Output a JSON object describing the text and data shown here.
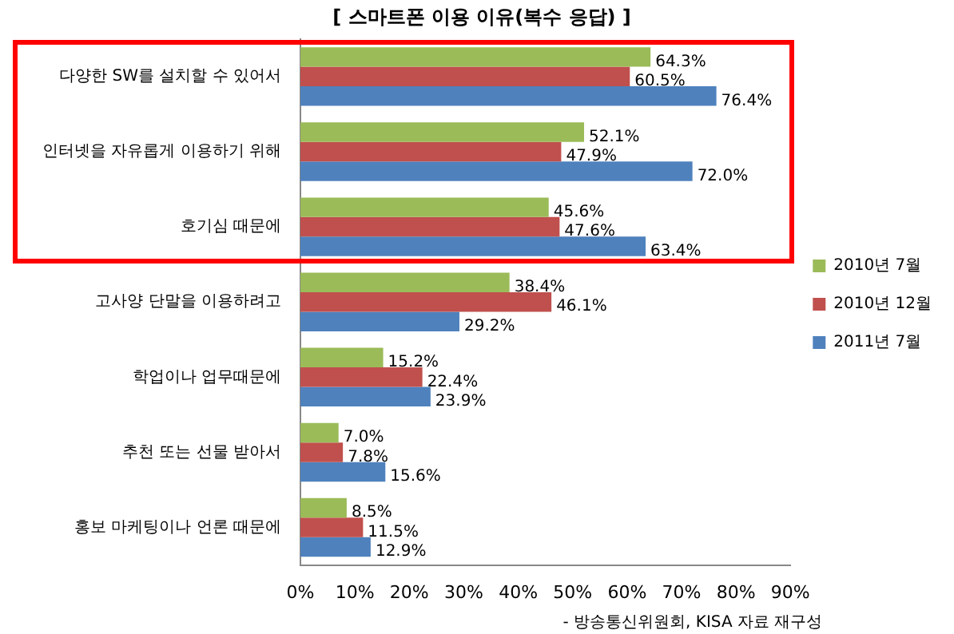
{
  "chart_data": {
    "type": "bar",
    "orientation": "horizontal",
    "title": "[ 스마트폰 이용 이유(복수 응답) ]",
    "categories": [
      "다양한 SW를 설치할 수 있어서",
      "인터넷을 자유롭게 이용하기 위해",
      "호기심 때문에",
      "고사양 단말을 이용하려고",
      "학업이나 업무때문에",
      "추천 또는 선물 받아서",
      "홍보 마케팅이나 언론 때문에"
    ],
    "series": [
      {
        "name": "2010년 7월",
        "color": "#9bbb59",
        "values": [
          64.3,
          52.1,
          45.6,
          38.4,
          15.2,
          7.0,
          8.5
        ],
        "value_labels": [
          "64.3%",
          "52.1%",
          "45.6%",
          "38.4%",
          "15.2%",
          "7.0%",
          "8.5%"
        ]
      },
      {
        "name": "2010년 12월",
        "color": "#c0504d",
        "values": [
          60.5,
          47.9,
          47.6,
          46.1,
          22.4,
          7.8,
          11.5
        ],
        "value_labels": [
          "60.5%",
          "47.9%",
          "47.6%",
          "46.1%",
          "22.4%",
          "7.8%",
          "11.5%"
        ]
      },
      {
        "name": "2011년 7월",
        "color": "#4f81bd",
        "values": [
          76.4,
          72.0,
          63.4,
          29.2,
          23.9,
          15.6,
          12.9
        ],
        "value_labels": [
          "76.4%",
          "72.0%",
          "63.4%",
          "29.2%",
          "23.9%",
          "15.6%",
          "12.9%"
        ]
      }
    ],
    "xlim": [
      0,
      90
    ],
    "xticks": [
      {
        "value": 0,
        "label": "0%"
      },
      {
        "value": 10,
        "label": "10%"
      },
      {
        "value": 20,
        "label": "20%"
      },
      {
        "value": 30,
        "label": "30%"
      },
      {
        "value": 40,
        "label": "40%"
      },
      {
        "value": 50,
        "label": "50%"
      },
      {
        "value": 60,
        "label": "60%"
      },
      {
        "value": 70,
        "label": "70%"
      },
      {
        "value": 80,
        "label": "80%"
      },
      {
        "value": 90,
        "label": "90%"
      }
    ],
    "grid": false,
    "legend": "right",
    "annotations": [
      "- 방송통신위원회, KISA 자료 재구성"
    ]
  }
}
